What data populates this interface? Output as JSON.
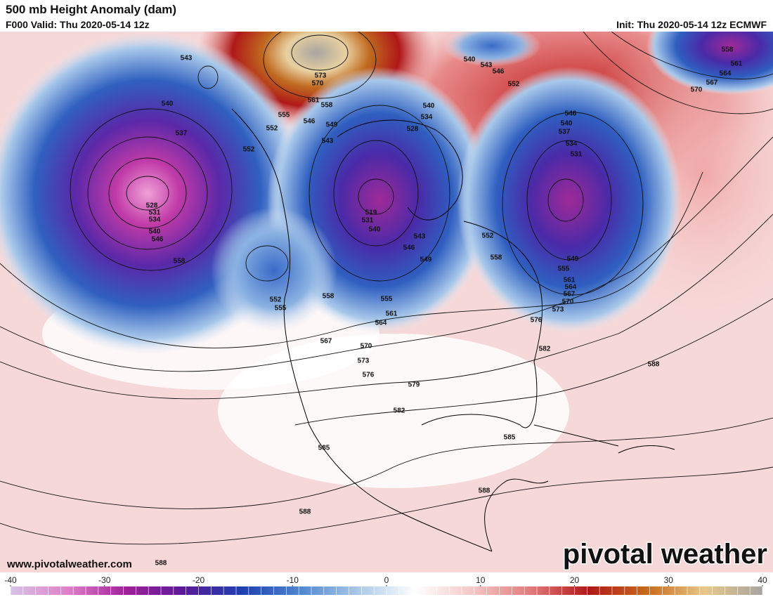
{
  "header": {
    "title": "500 mb Height Anomaly (dam)",
    "valid": "F000 Valid: Thu 2020-05-14 12z",
    "init": "Init: Thu 2020-05-14 12z ECMWF"
  },
  "footer": {
    "website": "www.pivotalweather.com",
    "logo": "pivotal weather"
  },
  "contour_labels": [
    543,
    540,
    537,
    528,
    531,
    534,
    540,
    546,
    558,
    552,
    552,
    555,
    546,
    549,
    543,
    561,
    558,
    573,
    570,
    540,
    534,
    528,
    540,
    543,
    546,
    552,
    519,
    531,
    540,
    543,
    546,
    549,
    552,
    558,
    552,
    555,
    558,
    555,
    561,
    564,
    567,
    570,
    573,
    576,
    579,
    582,
    585,
    585,
    588,
    588,
    588,
    546,
    540,
    537,
    534,
    531,
    549,
    555,
    561,
    564,
    567,
    570,
    573,
    576,
    582,
    588,
    558,
    561,
    564,
    567,
    570
  ],
  "colorbar": {
    "lim": [
      -40,
      40
    ],
    "ticks": [
      -40,
      -30,
      -20,
      -10,
      0,
      10,
      20,
      30,
      40
    ],
    "colors": [
      "#d6c4e8",
      "#e07fc8",
      "#a0209a",
      "#5a1a9a",
      "#1f3fb0",
      "#4f86d0",
      "#a9c8e8",
      "#ffffff",
      "#f4c6c6",
      "#e27a7a",
      "#b01818",
      "#c86a1a",
      "#e8c88a",
      "#a8a4a0"
    ]
  }
}
